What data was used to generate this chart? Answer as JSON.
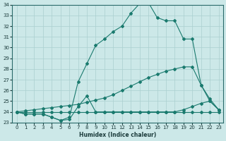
{
  "xlabel": "Humidex (Indice chaleur)",
  "xlim": [
    -0.5,
    23.5
  ],
  "ylim": [
    23,
    34
  ],
  "xticks": [
    0,
    1,
    2,
    3,
    4,
    5,
    6,
    7,
    8,
    9,
    10,
    11,
    12,
    13,
    14,
    15,
    16,
    17,
    18,
    19,
    20,
    21,
    22,
    23
  ],
  "yticks": [
    23,
    24,
    25,
    26,
    27,
    28,
    29,
    30,
    31,
    32,
    33,
    34
  ],
  "line_color": "#1a7a6e",
  "bg_color": "#cce8e8",
  "grid_color": "#aacfcf",
  "lines": [
    {
      "x": [
        0,
        1,
        2,
        3,
        4,
        5,
        6,
        7,
        8,
        9,
        10,
        11,
        12,
        13,
        14,
        15,
        16,
        17,
        18,
        19,
        20,
        21,
        22,
        23
      ],
      "y": [
        24,
        23.8,
        23.8,
        23.8,
        23.5,
        23.2,
        23.5,
        26.8,
        28.5,
        30.2,
        30.8,
        31.5,
        32.0,
        33.2,
        34.1,
        34.2,
        32.8,
        32.5,
        32.5,
        30.8,
        30.8,
        26.5,
        25.0,
        24.2
      ]
    },
    {
      "x": [
        0,
        1,
        2,
        3,
        4,
        5,
        6,
        7,
        8,
        9,
        10,
        11,
        12,
        13,
        14,
        15,
        16,
        17,
        18,
        19,
        20,
        21,
        22,
        23
      ],
      "y": [
        24,
        24.1,
        24.2,
        24.3,
        24.4,
        24.5,
        24.6,
        24.7,
        24.9,
        25.1,
        25.3,
        25.6,
        26.0,
        26.4,
        26.8,
        27.2,
        27.5,
        27.8,
        28.0,
        28.2,
        28.2,
        26.5,
        25.2,
        24.2
      ]
    },
    {
      "x": [
        0,
        1,
        2,
        3,
        4,
        5,
        6,
        7,
        8,
        9,
        10,
        11,
        12,
        13,
        14,
        15,
        16,
        17,
        18,
        19,
        20,
        21,
        22,
        23
      ],
      "y": [
        24,
        24,
        24,
        24,
        24,
        24,
        24,
        24,
        24,
        24,
        24,
        24,
        24,
        24,
        24,
        24,
        24,
        24,
        24,
        24,
        24,
        24,
        24,
        24
      ]
    },
    {
      "x": [
        0,
        1,
        2,
        3,
        4,
        5,
        6,
        7,
        8,
        9,
        10,
        11,
        12,
        13,
        14,
        15,
        16,
        17,
        18,
        19,
        20,
        21,
        22,
        23
      ],
      "y": [
        24,
        23.8,
        23.8,
        23.8,
        23.5,
        23.2,
        23.3,
        24.5,
        25.5,
        24.0,
        24.0,
        24.0,
        24.0,
        24.0,
        24.0,
        24.0,
        24.0,
        24.0,
        24.0,
        24.2,
        24.5,
        24.8,
        25.0,
        24.2
      ]
    }
  ]
}
